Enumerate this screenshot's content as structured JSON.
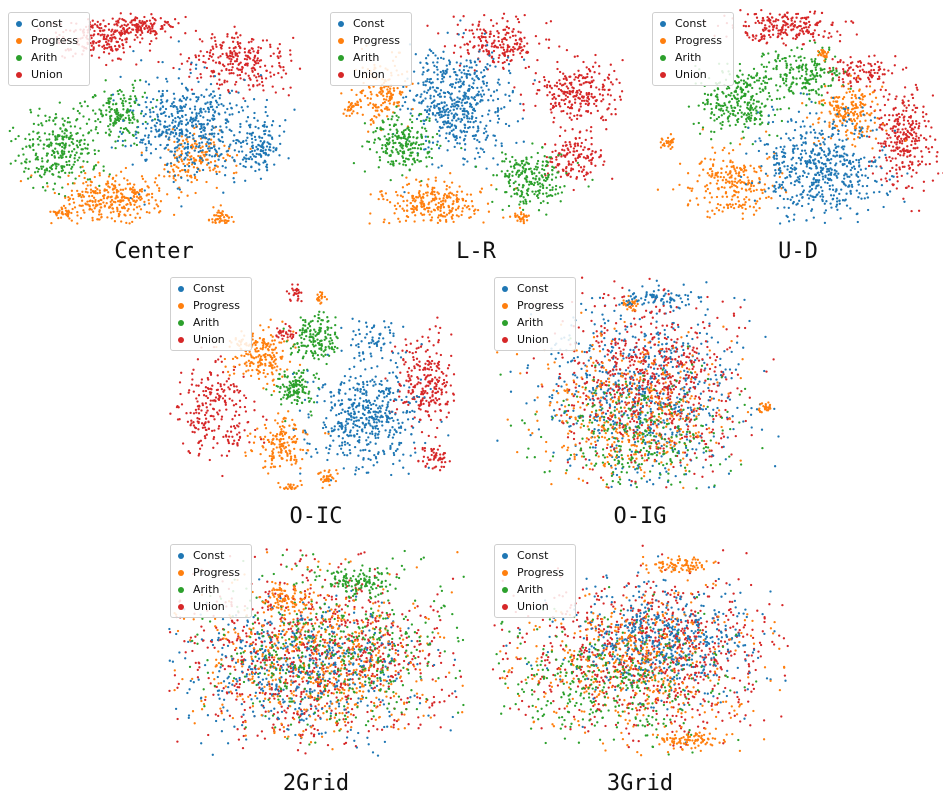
{
  "chart_data": [
    {
      "type": "scatter",
      "caption": "Center",
      "legend": [
        "Const",
        "Progress",
        "Arith",
        "Union"
      ],
      "legend_position": "upper-left",
      "axes": "off",
      "series": [
        {
          "name": "Const",
          "color": "#1f77b4"
        },
        {
          "name": "Progress",
          "color": "#ff7f0e"
        },
        {
          "name": "Arith",
          "color": "#2ca02c"
        },
        {
          "name": "Union",
          "color": "#d62728"
        }
      ]
    },
    {
      "type": "scatter",
      "caption": "L-R",
      "legend": [
        "Const",
        "Progress",
        "Arith",
        "Union"
      ],
      "legend_position": "upper-left",
      "axes": "off",
      "series": [
        {
          "name": "Const",
          "color": "#1f77b4"
        },
        {
          "name": "Progress",
          "color": "#ff7f0e"
        },
        {
          "name": "Arith",
          "color": "#2ca02c"
        },
        {
          "name": "Union",
          "color": "#d62728"
        }
      ]
    },
    {
      "type": "scatter",
      "caption": "U-D",
      "legend": [
        "Const",
        "Progress",
        "Arith",
        "Union"
      ],
      "legend_position": "upper-left",
      "axes": "off",
      "series": [
        {
          "name": "Const",
          "color": "#1f77b4"
        },
        {
          "name": "Progress",
          "color": "#ff7f0e"
        },
        {
          "name": "Arith",
          "color": "#2ca02c"
        },
        {
          "name": "Union",
          "color": "#d62728"
        }
      ]
    },
    {
      "type": "scatter",
      "caption": "O-IC",
      "legend": [
        "Const",
        "Progress",
        "Arith",
        "Union"
      ],
      "legend_position": "upper-left",
      "axes": "off",
      "series": [
        {
          "name": "Const",
          "color": "#1f77b4"
        },
        {
          "name": "Progress",
          "color": "#ff7f0e"
        },
        {
          "name": "Arith",
          "color": "#2ca02c"
        },
        {
          "name": "Union",
          "color": "#d62728"
        }
      ]
    },
    {
      "type": "scatter",
      "caption": "O-IG",
      "legend": [
        "Const",
        "Progress",
        "Arith",
        "Union"
      ],
      "legend_position": "upper-left",
      "axes": "off",
      "series": [
        {
          "name": "Const",
          "color": "#1f77b4"
        },
        {
          "name": "Progress",
          "color": "#ff7f0e"
        },
        {
          "name": "Arith",
          "color": "#2ca02c"
        },
        {
          "name": "Union",
          "color": "#d62728"
        }
      ]
    },
    {
      "type": "scatter",
      "caption": "2Grid",
      "legend": [
        "Const",
        "Progress",
        "Arith",
        "Union"
      ],
      "legend_position": "upper-left",
      "axes": "off",
      "series": [
        {
          "name": "Const",
          "color": "#1f77b4"
        },
        {
          "name": "Progress",
          "color": "#ff7f0e"
        },
        {
          "name": "Arith",
          "color": "#2ca02c"
        },
        {
          "name": "Union",
          "color": "#d62728"
        }
      ]
    },
    {
      "type": "scatter",
      "caption": "3Grid",
      "legend": [
        "Const",
        "Progress",
        "Arith",
        "Union"
      ],
      "legend_position": "upper-left",
      "axes": "off",
      "series": [
        {
          "name": "Const",
          "color": "#1f77b4"
        },
        {
          "name": "Progress",
          "color": "#ff7f0e"
        },
        {
          "name": "Arith",
          "color": "#2ca02c"
        },
        {
          "name": "Union",
          "color": "#d62728"
        }
      ]
    }
  ]
}
